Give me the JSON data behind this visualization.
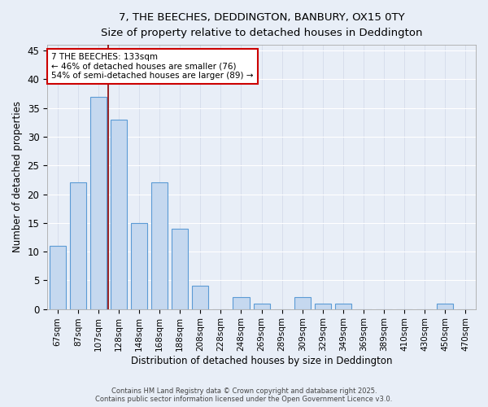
{
  "title_line1": "7, THE BEECHES, DEDDINGTON, BANBURY, OX15 0TY",
  "title_line2": "Size of property relative to detached houses in Deddington",
  "xlabel": "Distribution of detached houses by size in Deddington",
  "ylabel": "Number of detached properties",
  "categories": [
    "67sqm",
    "87sqm",
    "107sqm",
    "128sqm",
    "148sqm",
    "168sqm",
    "188sqm",
    "208sqm",
    "228sqm",
    "248sqm",
    "269sqm",
    "289sqm",
    "309sqm",
    "329sqm",
    "349sqm",
    "369sqm",
    "389sqm",
    "410sqm",
    "430sqm",
    "450sqm",
    "470sqm"
  ],
  "values": [
    11,
    22,
    37,
    33,
    15,
    22,
    14,
    4,
    0,
    2,
    1,
    0,
    2,
    1,
    1,
    0,
    0,
    0,
    0,
    1,
    0
  ],
  "bar_color": "#c5d8ef",
  "bar_edge_color": "#5b9bd5",
  "background_color": "#e8eef7",
  "grid_color": "#d0d8e8",
  "red_line_x": 2.5,
  "annotation_text": "7 THE BEECHES: 133sqm\n← 46% of detached houses are smaller (76)\n54% of semi-detached houses are larger (89) →",
  "annotation_box_color": "#ffffff",
  "annotation_box_edge": "#cc0000",
  "ylim": [
    0,
    46
  ],
  "yticks": [
    0,
    5,
    10,
    15,
    20,
    25,
    30,
    35,
    40,
    45
  ],
  "footer_line1": "Contains HM Land Registry data © Crown copyright and database right 2025.",
  "footer_line2": "Contains public sector information licensed under the Open Government Licence v3.0."
}
